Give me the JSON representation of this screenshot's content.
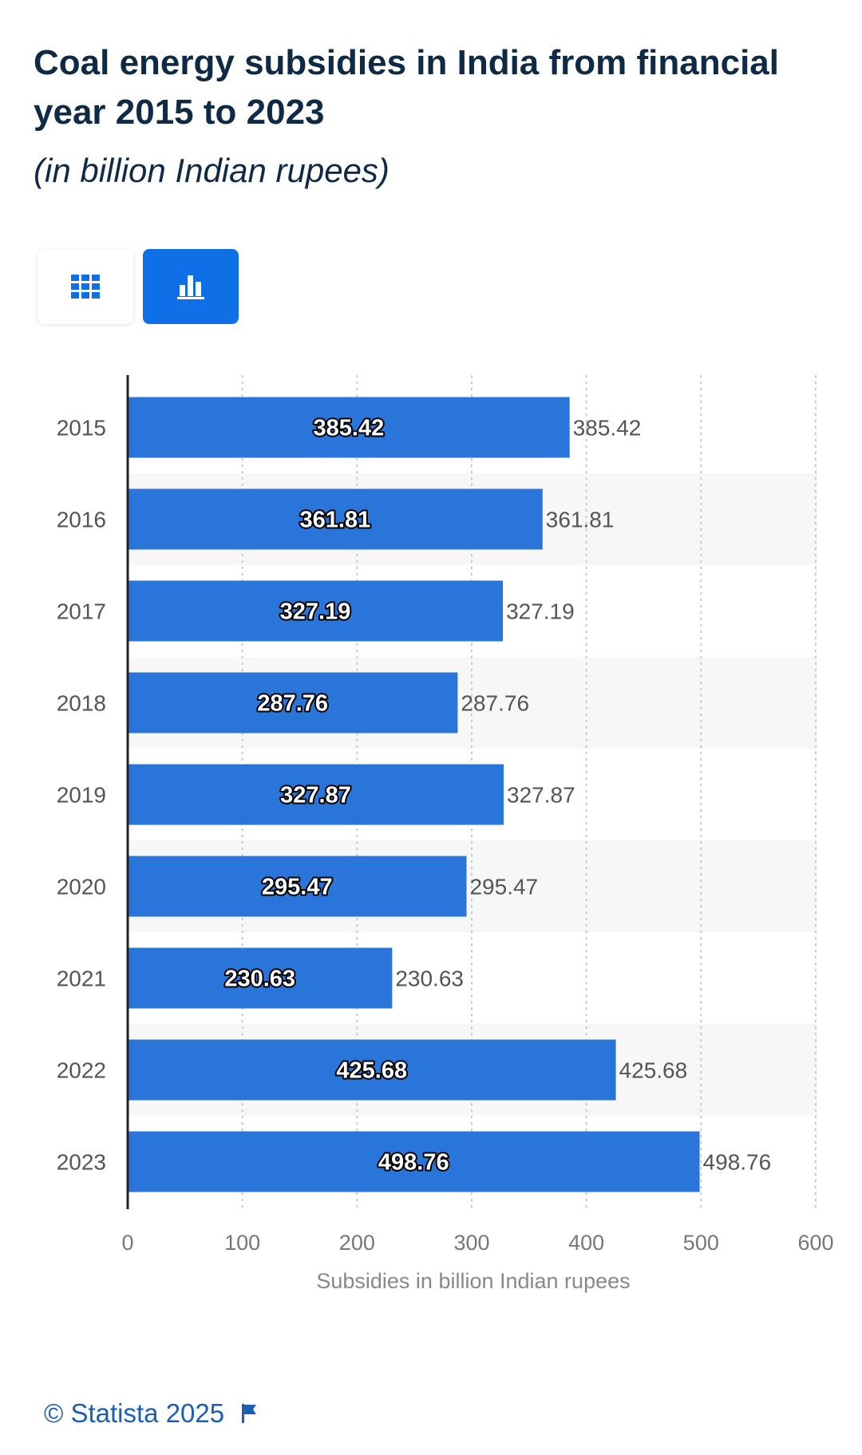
{
  "header": {
    "title": "Coal energy subsidies in India from financial year 2015 to 2023",
    "subtitle": "(in billion Indian rupees)"
  },
  "view_toggle": {
    "table_icon": "grid-icon",
    "chart_icon": "bar-chart-icon",
    "active": "chart"
  },
  "colors": {
    "bar": "#2a75d9",
    "accent": "#0f6fe6",
    "title": "#0f2a44",
    "band": "#f7f7f7"
  },
  "chart_data": {
    "type": "bar",
    "orientation": "horizontal",
    "categories": [
      "2015",
      "2016",
      "2017",
      "2018",
      "2019",
      "2020",
      "2021",
      "2022",
      "2023"
    ],
    "values": [
      385.42,
      361.81,
      327.19,
      287.76,
      327.87,
      295.47,
      230.63,
      425.68,
      498.76
    ],
    "xlabel": "Subsidies in billion Indian rupees",
    "ylabel": "",
    "xlim": [
      0,
      600
    ],
    "xticks": [
      0,
      100,
      200,
      300,
      400,
      500,
      600
    ],
    "grid": true,
    "legend": "none"
  },
  "footer": {
    "copyright": "© Statista 2025",
    "flag_icon": "flag-icon"
  }
}
